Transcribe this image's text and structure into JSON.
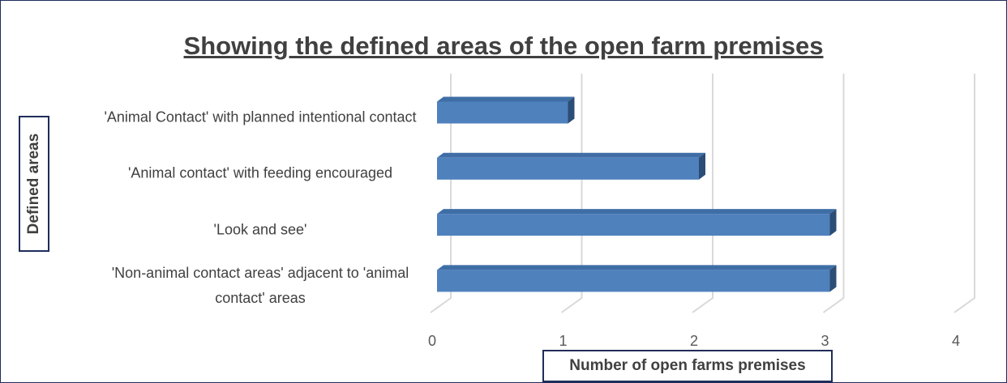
{
  "chart_data": {
    "type": "bar",
    "orientation": "horizontal",
    "3d": true,
    "title": "Showing the defined areas of the open farm premises",
    "y_label": "Defined areas",
    "x_label": "Number of open farms premises",
    "categories": [
      "'Animal Contact' with planned intentional contact",
      "'Animal contact' with feeding encouraged",
      "'Look and see'",
      "'Non-animal contact areas' adjacent to 'animal contact' areas"
    ],
    "values": [
      1,
      2,
      3,
      3
    ],
    "color": "#4f81bd",
    "xlim": [
      0,
      4
    ],
    "xticks": [
      0,
      1,
      2,
      3,
      4
    ],
    "grid": true
  }
}
